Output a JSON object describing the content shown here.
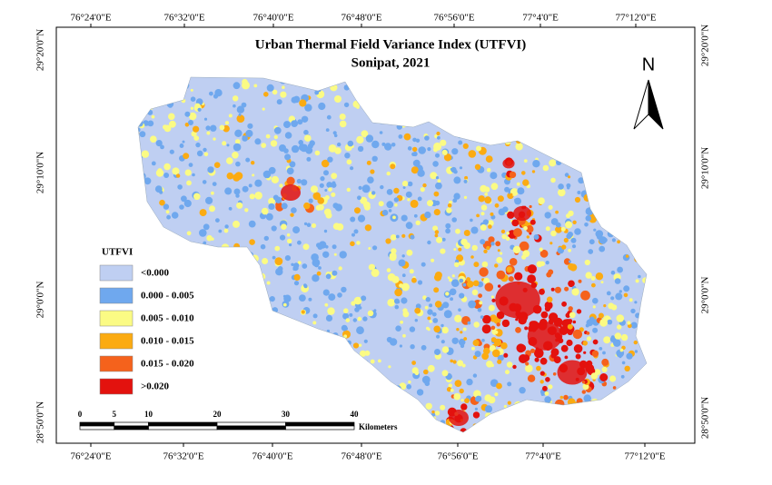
{
  "title": "Urban Thermal Field Variance Index (UTFVI)",
  "subtitle": "Sonipat, 2021",
  "north": "N",
  "legend": {
    "title": "UTFVI",
    "items": [
      {
        "label": "<0.000",
        "color": "#bfcff2"
      },
      {
        "label": "0.000 - 0.005",
        "color": "#6fa8ee"
      },
      {
        "label": "0.005 - 0.010",
        "color": "#fbfb84"
      },
      {
        "label": "0.010 - 0.015",
        "color": "#fbab12"
      },
      {
        "label": "0.015 - 0.020",
        "color": "#f5621c"
      },
      {
        "label": ">0.020",
        "color": "#e3120e"
      }
    ]
  },
  "grid_labels": {
    "top": [
      "76°24'0\"E",
      "76°32'0\"E",
      "76°40'0\"E",
      "76°48'0\"E",
      "76°56'0\"E",
      "77°4'0\"E",
      "77°12'0\"E"
    ],
    "bottom": [
      "76°24'0\"E",
      "76°32'0\"E",
      "76°40'0\"E",
      "76°48'0\"E",
      "76°56'0\"E",
      "77°4'0\"E",
      "77°12'0\"E"
    ],
    "left": [
      "29°20'0\"N",
      "29°10'0\"N",
      "29°0'0\"N",
      "28°50'0\"N"
    ],
    "right": [
      "29°20'0\"N",
      "29°10'0\"N",
      "29°0'0\"N",
      "28°50'0\"N"
    ]
  },
  "scale_bar": {
    "ticks": [
      "0",
      "5",
      "10",
      "20",
      "30",
      "40"
    ],
    "unit": "Kilometers"
  }
}
